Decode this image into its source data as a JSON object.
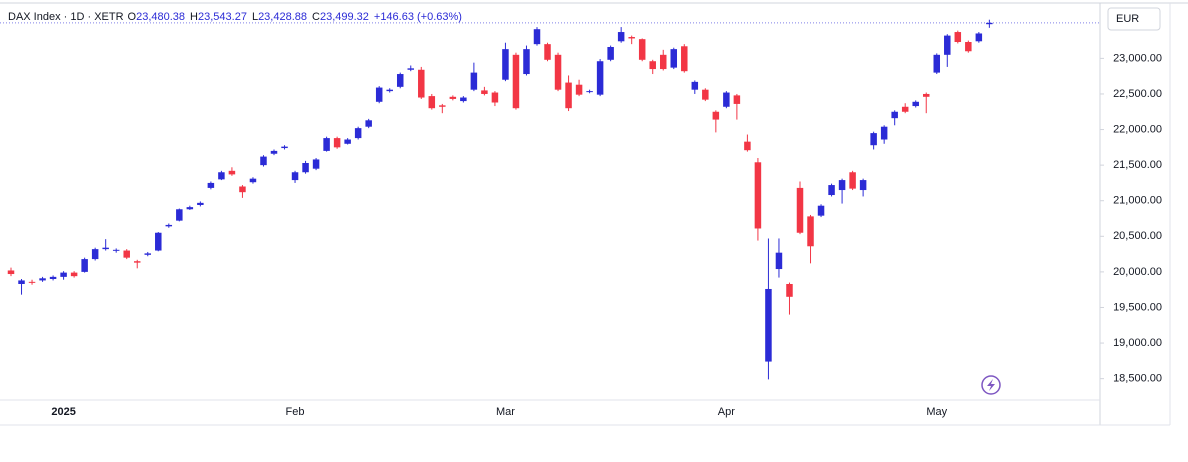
{
  "header": {
    "symbol": "DAX Index · 1D · XETR",
    "fields": [
      {
        "key": "O",
        "value": "23,480.38"
      },
      {
        "key": "H",
        "value": "23,543.27"
      },
      {
        "key": "L",
        "value": "23,428.88"
      },
      {
        "key": "C",
        "value": "23,499.32"
      }
    ],
    "change": "+146.63 (+0.63%)",
    "currency": "EUR"
  },
  "chart_data": {
    "type": "candlestick",
    "categories": [
      null,
      null,
      null,
      null,
      null,
      "2025",
      null,
      null,
      null,
      null,
      null,
      null,
      null,
      null,
      null,
      null,
      null,
      null,
      null,
      null,
      null,
      null,
      null,
      null,
      null,
      null,
      null,
      "Feb",
      null,
      null,
      null,
      null,
      null,
      null,
      null,
      null,
      null,
      null,
      null,
      null,
      null,
      null,
      null,
      null,
      null,
      null,
      null,
      "Mar",
      null,
      null,
      null,
      null,
      null,
      null,
      null,
      null,
      null,
      null,
      null,
      null,
      null,
      null,
      null,
      null,
      null,
      null,
      null,
      null,
      "Apr",
      null,
      null,
      null,
      null,
      null,
      null,
      null,
      null,
      null,
      null,
      null,
      null,
      null,
      null,
      null,
      null,
      null,
      null,
      null,
      "May",
      null,
      null,
      null,
      null,
      null
    ],
    "open": [
      20020,
      19830,
      19860,
      19880,
      19900,
      19930,
      19990,
      20000,
      20180,
      20320,
      20300,
      20300,
      20150,
      20240,
      20300,
      20640,
      20720,
      20880,
      20940,
      21180,
      21300,
      21420,
      21200,
      21260,
      21500,
      21660,
      21740,
      21290,
      21400,
      21450,
      21700,
      21880,
      21800,
      21880,
      22040,
      22390,
      22540,
      22600,
      22840,
      22840,
      22470,
      22340,
      22460,
      22400,
      22560,
      22550,
      22520,
      22700,
      23050,
      22780,
      23200,
      23200,
      23050,
      22660,
      22630,
      22530,
      22490,
      22980,
      23240,
      23300,
      23270,
      22960,
      23050,
      22870,
      23170,
      22560,
      22560,
      22250,
      22320,
      22480,
      21830,
      21540,
      18740,
      20040,
      19830,
      21180,
      20780,
      20790,
      21080,
      21150,
      21400,
      21150,
      21780,
      21860,
      22160,
      22320,
      22330,
      22500,
      22800,
      23050,
      23370,
      23230,
      23240,
      23480.38
    ],
    "high": [
      20060,
      19900,
      19890,
      19930,
      19950,
      20010,
      20010,
      20200,
      20340,
      20460,
      20330,
      20320,
      20170,
      20280,
      20560,
      20680,
      20890,
      20930,
      20990,
      21270,
      21420,
      21470,
      21220,
      21330,
      21640,
      21720,
      21780,
      21420,
      21560,
      21600,
      21900,
      21900,
      21880,
      22040,
      22150,
      22610,
      22580,
      22800,
      22900,
      22880,
      22500,
      22360,
      22480,
      22470,
      22940,
      22600,
      22540,
      23220,
      23080,
      23180,
      23440,
      23220,
      23080,
      22760,
      22700,
      22560,
      22990,
      23180,
      23440,
      23320,
      23280,
      22980,
      23120,
      23150,
      23200,
      22690,
      22580,
      22270,
      22540,
      22500,
      21930,
      21600,
      20470,
      20470,
      19850,
      21270,
      20800,
      20950,
      21240,
      21310,
      21420,
      21310,
      21970,
      22060,
      22270,
      22370,
      22410,
      22520,
      23070,
      23340,
      23390,
      23250,
      23370,
      23543.27
    ],
    "low": [
      19940,
      19680,
      19820,
      19860,
      19880,
      19890,
      19920,
      19990,
      20160,
      20300,
      20270,
      20180,
      20050,
      20220,
      20290,
      20620,
      20710,
      20870,
      20920,
      21160,
      21290,
      21350,
      21040,
      21240,
      21480,
      21640,
      21720,
      21250,
      21380,
      21430,
      21690,
      21730,
      21790,
      21860,
      22020,
      22370,
      22520,
      22580,
      22820,
      22430,
      22280,
      22230,
      22410,
      22380,
      22540,
      22480,
      22330,
      22680,
      22280,
      22760,
      23180,
      22960,
      22540,
      22260,
      22470,
      22510,
      22470,
      22960,
      23220,
      23200,
      22960,
      22780,
      22830,
      22850,
      22800,
      22500,
      22400,
      21960,
      22300,
      22140,
      21690,
      20440,
      18490,
      19920,
      19400,
      20530,
      20120,
      20770,
      21060,
      20960,
      21150,
      21060,
      21720,
      21800,
      22060,
      22230,
      22310,
      22230,
      22780,
      22880,
      23210,
      23080,
      23220,
      23428.88
    ],
    "close": [
      19970,
      19880,
      19850,
      19910,
      19930,
      19990,
      19940,
      20180,
      20320,
      20340,
      20310,
      20200,
      20130,
      20260,
      20550,
      20660,
      20880,
      20910,
      20970,
      21250,
      21400,
      21370,
      21120,
      21310,
      21620,
      21700,
      21760,
      21400,
      21530,
      21580,
      21880,
      21750,
      21860,
      22020,
      22130,
      22590,
      22560,
      22780,
      22860,
      22450,
      22300,
      22320,
      22430,
      22450,
      22800,
      22500,
      22380,
      23130,
      22300,
      23130,
      23410,
      22980,
      22560,
      22300,
      22490,
      22540,
      22960,
      23160,
      23370,
      23280,
      22980,
      22850,
      22850,
      23130,
      22820,
      22670,
      22420,
      22140,
      22520,
      22360,
      21710,
      20610,
      19760,
      20270,
      19650,
      20550,
      20360,
      20930,
      21220,
      21290,
      21170,
      21290,
      21950,
      22040,
      22250,
      22250,
      22390,
      22460,
      23050,
      23320,
      23230,
      23100,
      23350,
      23499.32
    ],
    "up_color": "#2b2bd6",
    "down_color": "#f23645",
    "ylim": [
      18200,
      23750
    ],
    "yticks": [
      {
        "value": 18500,
        "label": "18,500.00"
      },
      {
        "value": 19000,
        "label": "19,000.00"
      },
      {
        "value": 19500,
        "label": "19,500.00"
      },
      {
        "value": 20000,
        "label": "20,000.00"
      },
      {
        "value": 20500,
        "label": "20,500.00"
      },
      {
        "value": 21000,
        "label": "21,000.00"
      },
      {
        "value": 21500,
        "label": "21,500.00"
      },
      {
        "value": 22000,
        "label": "22,000.00"
      },
      {
        "value": 22500,
        "label": "22,500.00"
      },
      {
        "value": 23000,
        "label": "23,000.00"
      }
    ],
    "grid": false
  }
}
